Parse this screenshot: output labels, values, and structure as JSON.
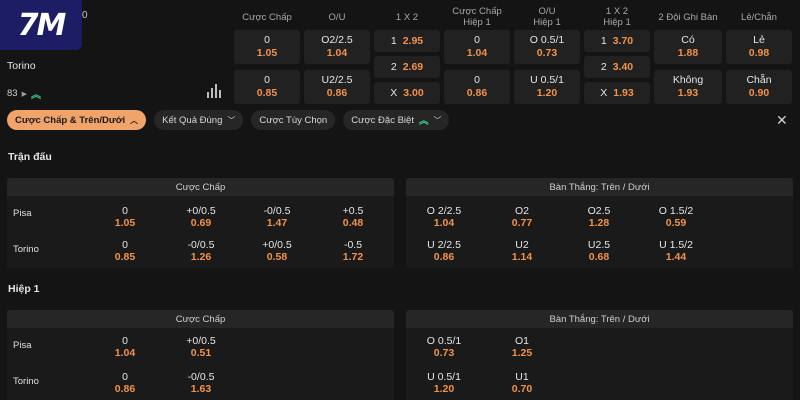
{
  "logo": {
    "text": "7M"
  },
  "top_fragment": "0",
  "top": {
    "headers": [
      "Cược Chấp",
      "O/U",
      "1 X 2",
      "Cược Chấp\nHiệp 1",
      "O/U\nHiệp 1",
      "1 X 2\nHiệp 1",
      "2 Đội Ghi Bàn",
      "Lẻ/Chẵn"
    ],
    "team2": "Torino",
    "score_label": "83",
    "row1": [
      {
        "line": "0",
        "odd": "1.05"
      },
      {
        "line": "O2/2.5",
        "odd": "1.04"
      },
      {
        "line": "1",
        "odd": "2.95"
      },
      {
        "line": "0",
        "odd": "1.04"
      },
      {
        "line": "O 0.5/1",
        "odd": "0.73"
      },
      {
        "line": "1",
        "odd": "3.70"
      },
      {
        "line": "Có",
        "odd": "1.88"
      },
      {
        "line": "Lẻ",
        "odd": "0.98"
      }
    ],
    "draw": [
      {
        "line": "2",
        "odd": "2.69"
      },
      {
        "line": "2",
        "odd": "3.40"
      }
    ],
    "row2": [
      {
        "line": "0",
        "odd": "0.85"
      },
      {
        "line": "U2/2.5",
        "odd": "0.86"
      },
      {
        "line": "X",
        "odd": "3.00"
      },
      {
        "line": "0",
        "odd": "0.86"
      },
      {
        "line": "U 0.5/1",
        "odd": "1.20"
      },
      {
        "line": "X",
        "odd": "1.93"
      },
      {
        "line": "Không",
        "odd": "1.93"
      },
      {
        "line": "Chẵn",
        "odd": "0.90"
      }
    ]
  },
  "filters": [
    {
      "label": "Cược Chấp & Trên/Dưới"
    },
    {
      "label": "Kết Quả Đúng"
    },
    {
      "label": "Cược Tùy Chọn"
    },
    {
      "label": "Cược Đặc Biệt"
    }
  ],
  "sections": {
    "full": {
      "title": "Trận đấu",
      "left_head": "Cược Chấp",
      "right_head": "Bàn Thắng: Trên / Dưới",
      "team1": "Pisa",
      "team2": "Torino",
      "left_rows": [
        [
          {
            "line": "0",
            "odd": "1.05"
          },
          {
            "line": "+0/0.5",
            "odd": "0.69"
          },
          {
            "line": "-0/0.5",
            "odd": "1.47"
          },
          {
            "line": "+0.5",
            "odd": "0.48"
          }
        ],
        [
          {
            "line": "0",
            "odd": "0.85"
          },
          {
            "line": "-0/0.5",
            "odd": "1.26"
          },
          {
            "line": "+0/0.5",
            "odd": "0.58"
          },
          {
            "line": "-0.5",
            "odd": "1.72"
          }
        ]
      ],
      "right_rows": [
        [
          {
            "line": "O 2/2.5",
            "odd": "1.04"
          },
          {
            "line": "O2",
            "odd": "0.77"
          },
          {
            "line": "O2.5",
            "odd": "1.28"
          },
          {
            "line": "O 1.5/2",
            "odd": "0.59"
          }
        ],
        [
          {
            "line": "U 2/2.5",
            "odd": "0.86"
          },
          {
            "line": "U2",
            "odd": "1.14"
          },
          {
            "line": "U2.5",
            "odd": "0.68"
          },
          {
            "line": "U 1.5/2",
            "odd": "1.44"
          }
        ]
      ]
    },
    "half": {
      "title": "Hiệp 1",
      "left_head": "Cược Chấp",
      "right_head": "Bàn Thắng: Trên / Dưới",
      "team1": "Pisa",
      "team2": "Torino",
      "left_rows": [
        [
          {
            "line": "0",
            "odd": "1.04"
          },
          {
            "line": "+0/0.5",
            "odd": "0.51"
          }
        ],
        [
          {
            "line": "0",
            "odd": "0.86"
          },
          {
            "line": "-0/0.5",
            "odd": "1.63"
          }
        ]
      ],
      "right_rows": [
        [
          {
            "line": "O 0.5/1",
            "odd": "0.73"
          },
          {
            "line": "O1",
            "odd": "1.25"
          }
        ],
        [
          {
            "line": "U 0.5/1",
            "odd": "1.20"
          },
          {
            "line": "U1",
            "odd": "0.70"
          }
        ]
      ]
    }
  }
}
